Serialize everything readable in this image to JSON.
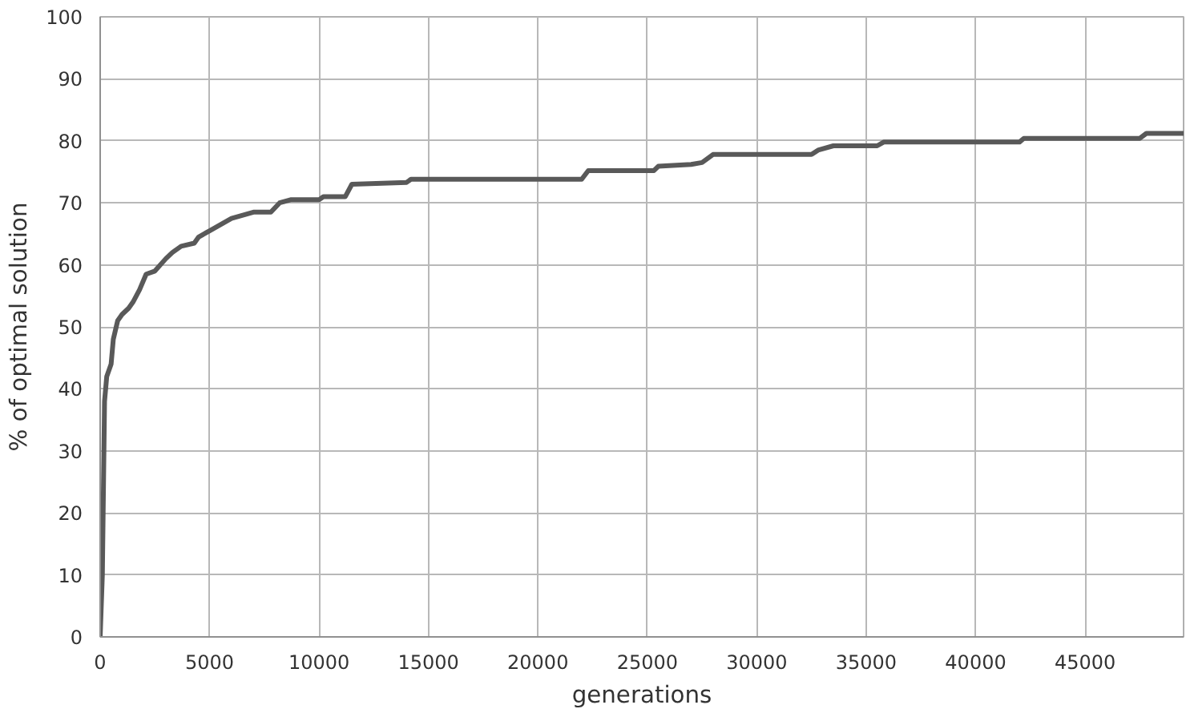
{
  "chart_data": {
    "type": "line",
    "xlabel": "generations",
    "ylabel": "% of optimal solution",
    "xlim": [
      0,
      49500
    ],
    "ylim": [
      0,
      100
    ],
    "xticks": [
      0,
      5000,
      10000,
      15000,
      20000,
      25000,
      30000,
      35000,
      40000,
      45000
    ],
    "yticks": [
      0,
      10,
      20,
      30,
      40,
      50,
      60,
      70,
      80,
      90,
      100
    ],
    "grid": true,
    "marker": "none",
    "line_style": "solid",
    "series": [
      {
        "color": "#595959",
        "x": [
          0,
          100,
          200,
          300,
          500,
          600,
          800,
          1000,
          1300,
          1500,
          1800,
          2100,
          2500,
          3000,
          3300,
          3700,
          4300,
          4500,
          5000,
          5500,
          6000,
          7000,
          7800,
          8200,
          8700,
          10000,
          10200,
          11200,
          11500,
          14000,
          14200,
          22000,
          22300,
          25300,
          25500,
          27000,
          27500,
          28000,
          32500,
          32800,
          33500,
          35500,
          35800,
          42000,
          42200,
          47500,
          47800,
          49500
        ],
        "values": [
          0,
          10,
          38,
          42,
          44,
          48,
          51,
          52,
          53,
          54,
          56,
          58.5,
          59,
          61,
          62,
          63,
          63.5,
          64.5,
          65.5,
          66.5,
          67.5,
          68.5,
          68.5,
          70,
          70.5,
          70.5,
          71,
          71,
          73,
          73.3,
          73.8,
          73.8,
          75.2,
          75.2,
          75.9,
          76.2,
          76.5,
          77.8,
          77.8,
          78.5,
          79.2,
          79.2,
          79.8,
          79.8,
          80.4,
          80.4,
          81.2,
          81.2
        ]
      }
    ]
  }
}
